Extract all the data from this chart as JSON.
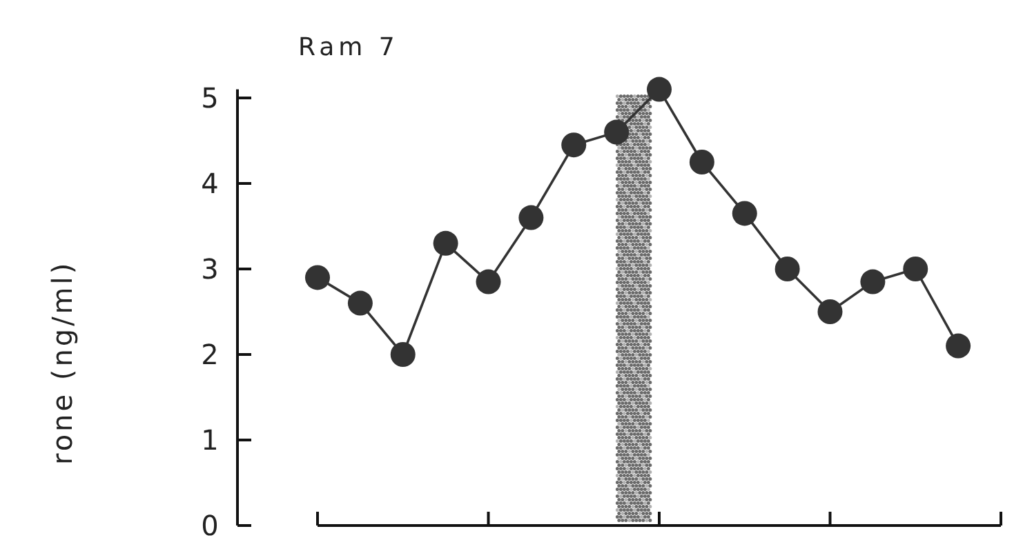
{
  "chart_data": {
    "type": "line",
    "title": "Ram 7",
    "ylabel": "rone (ng/ml)",
    "categories": [
      null,
      null,
      null,
      null,
      null,
      null,
      null,
      null,
      null,
      null,
      null,
      null,
      null,
      null,
      null,
      null
    ],
    "series": [
      {
        "color": "#333333",
        "values": [
          2.9,
          2.6,
          2.0,
          3.3,
          2.85,
          3.6,
          4.45,
          4.6,
          5.1,
          4.25,
          3.65,
          3.0,
          2.5,
          2.85,
          3.0,
          2.1
        ]
      }
    ],
    "ylim": [
      0,
      5.1
    ],
    "yticks": [
      0,
      1,
      2,
      3,
      4,
      5
    ],
    "marker": "circle",
    "line_style": "solid",
    "grid": false
  }
}
